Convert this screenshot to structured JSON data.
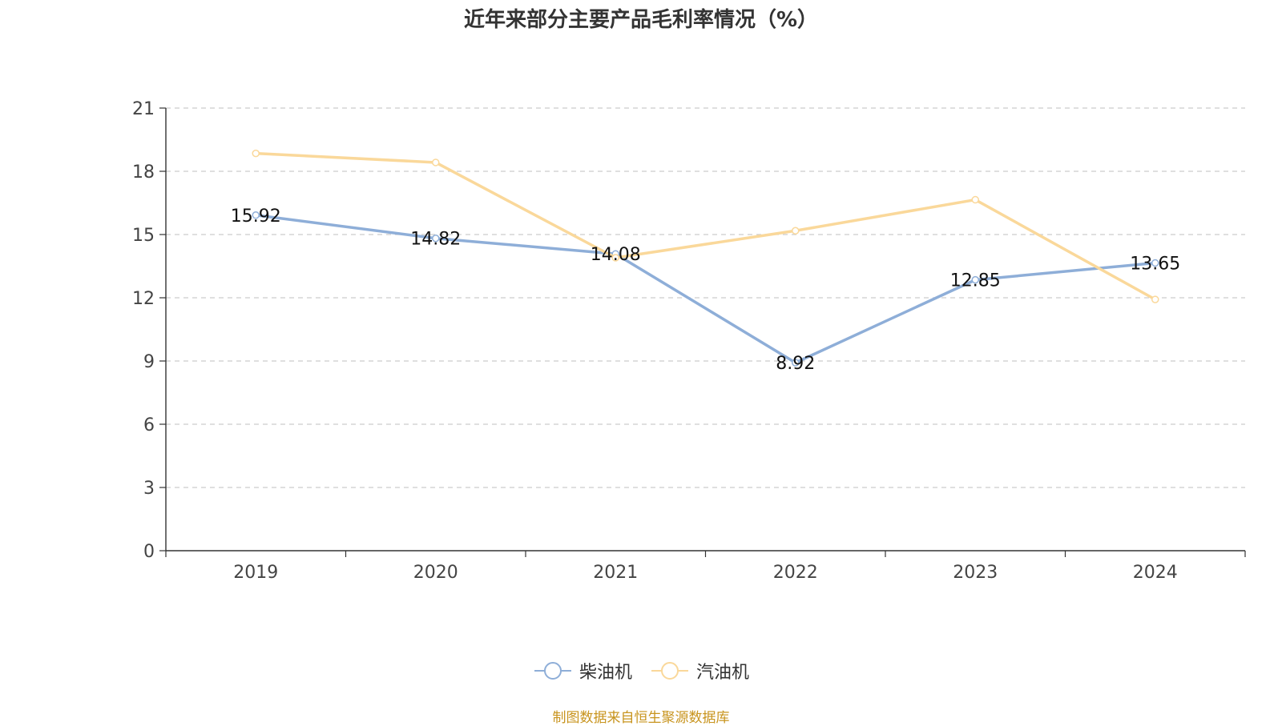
{
  "chart_data": {
    "type": "line",
    "title": "近年来部分主要产品毛利率情况（%）",
    "categories": [
      "2019",
      "2020",
      "2021",
      "2022",
      "2023",
      "2024"
    ],
    "ylim": [
      0,
      21
    ],
    "yticks": [
      0,
      3,
      6,
      9,
      12,
      15,
      18,
      21
    ],
    "grid": true,
    "legend_position": "bottom",
    "series": [
      {
        "name": "柴油机",
        "color": "#8eaed8",
        "values": [
          15.92,
          14.82,
          14.08,
          8.92,
          12.85,
          13.65
        ],
        "labels": [
          "15.92",
          "14.82",
          "14.08",
          "8.92",
          "12.85",
          "13.65"
        ]
      },
      {
        "name": "汽油机",
        "color": "#fad89a",
        "values": [
          18.85,
          18.42,
          13.9,
          15.18,
          16.65,
          11.92
        ]
      }
    ],
    "source": "制图数据来自恒生聚源数据库"
  }
}
